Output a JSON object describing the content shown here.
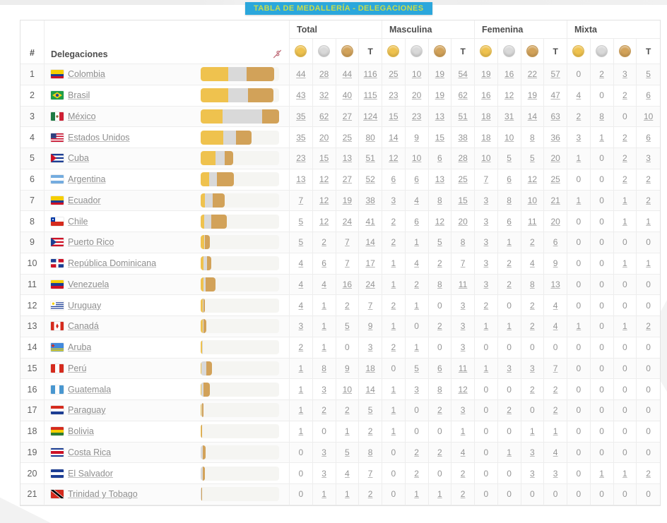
{
  "title": "TABLA DE MEDALLERÍA - DELEGACIONES",
  "colors": {
    "title_bg": "#2BA7DC",
    "title_text": "#C9DD4A",
    "gold": "#EFC24E",
    "silver": "#D9D9D9",
    "bronze": "#D2A259",
    "bar_track": "#F5F5F2",
    "header_icon_pink": "#C2717D"
  },
  "table": {
    "rank_header": "#",
    "delegations_header": "Delegaciones",
    "total_label": "T",
    "max_total": 124,
    "groups": [
      {
        "label": "Total",
        "key": "total"
      },
      {
        "label": "Masculina",
        "key": "masculina"
      },
      {
        "label": "Femenina",
        "key": "femenina"
      },
      {
        "label": "Mixta",
        "key": "mixta"
      }
    ],
    "medal_columns": [
      "gold",
      "silver",
      "bronze",
      "total"
    ],
    "rows": [
      {
        "rank": 1,
        "delegation": "Colombia",
        "flag": "colombia",
        "total": [
          44,
          28,
          44,
          116
        ],
        "masculina": [
          25,
          10,
          19,
          54
        ],
        "femenina": [
          19,
          16,
          22,
          57
        ],
        "mixta": [
          0,
          2,
          3,
          5
        ]
      },
      {
        "rank": 2,
        "delegation": "Brasil",
        "flag": "brasil",
        "total": [
          43,
          32,
          40,
          115
        ],
        "masculina": [
          23,
          20,
          19,
          62
        ],
        "femenina": [
          16,
          12,
          19,
          47
        ],
        "mixta": [
          4,
          0,
          2,
          6
        ]
      },
      {
        "rank": 3,
        "delegation": "México",
        "flag": "mexico",
        "total": [
          35,
          62,
          27,
          124
        ],
        "masculina": [
          15,
          23,
          13,
          51
        ],
        "femenina": [
          18,
          31,
          14,
          63
        ],
        "mixta": [
          2,
          8,
          0,
          10
        ]
      },
      {
        "rank": 4,
        "delegation": "Estados Unidos",
        "flag": "estados-unidos",
        "total": [
          35,
          20,
          25,
          80
        ],
        "masculina": [
          14,
          9,
          15,
          38
        ],
        "femenina": [
          18,
          10,
          8,
          36
        ],
        "mixta": [
          3,
          1,
          2,
          6
        ]
      },
      {
        "rank": 5,
        "delegation": "Cuba",
        "flag": "cuba",
        "total": [
          23,
          15,
          13,
          51
        ],
        "masculina": [
          12,
          10,
          6,
          28
        ],
        "femenina": [
          10,
          5,
          5,
          20
        ],
        "mixta": [
          1,
          0,
          2,
          3
        ]
      },
      {
        "rank": 6,
        "delegation": "Argentina",
        "flag": "argentina",
        "total": [
          13,
          12,
          27,
          52
        ],
        "masculina": [
          6,
          6,
          13,
          25
        ],
        "femenina": [
          7,
          6,
          12,
          25
        ],
        "mixta": [
          0,
          0,
          2,
          2
        ]
      },
      {
        "rank": 7,
        "delegation": "Ecuador",
        "flag": "ecuador",
        "total": [
          7,
          12,
          19,
          38
        ],
        "masculina": [
          3,
          4,
          8,
          15
        ],
        "femenina": [
          3,
          8,
          10,
          21
        ],
        "mixta": [
          1,
          0,
          1,
          2
        ]
      },
      {
        "rank": 8,
        "delegation": "Chile",
        "flag": "chile",
        "total": [
          5,
          12,
          24,
          41
        ],
        "masculina": [
          2,
          6,
          12,
          20
        ],
        "femenina": [
          3,
          6,
          11,
          20
        ],
        "mixta": [
          0,
          0,
          1,
          1
        ]
      },
      {
        "rank": 9,
        "delegation": "Puerto Rico",
        "flag": "puerto-rico",
        "total": [
          5,
          2,
          7,
          14
        ],
        "masculina": [
          2,
          1,
          5,
          8
        ],
        "femenina": [
          3,
          1,
          2,
          6
        ],
        "mixta": [
          0,
          0,
          0,
          0
        ]
      },
      {
        "rank": 10,
        "delegation": "República Dominicana",
        "flag": "republica-dominicana",
        "total": [
          4,
          6,
          7,
          17
        ],
        "masculina": [
          1,
          4,
          2,
          7
        ],
        "femenina": [
          3,
          2,
          4,
          9
        ],
        "mixta": [
          0,
          0,
          1,
          1
        ]
      },
      {
        "rank": 11,
        "delegation": "Venezuela",
        "flag": "venezuela",
        "total": [
          4,
          4,
          16,
          24
        ],
        "masculina": [
          1,
          2,
          8,
          11
        ],
        "femenina": [
          3,
          2,
          8,
          13
        ],
        "mixta": [
          0,
          0,
          0,
          0
        ]
      },
      {
        "rank": 12,
        "delegation": "Uruguay",
        "flag": "uruguay",
        "total": [
          4,
          1,
          2,
          7
        ],
        "masculina": [
          2,
          1,
          0,
          3
        ],
        "femenina": [
          2,
          0,
          2,
          4
        ],
        "mixta": [
          0,
          0,
          0,
          0
        ]
      },
      {
        "rank": 13,
        "delegation": "Canadá",
        "flag": "canada",
        "total": [
          3,
          1,
          5,
          9
        ],
        "masculina": [
          1,
          0,
          2,
          3
        ],
        "femenina": [
          1,
          1,
          2,
          4
        ],
        "mixta": [
          1,
          0,
          1,
          2
        ]
      },
      {
        "rank": 14,
        "delegation": "Aruba",
        "flag": "aruba",
        "total": [
          2,
          1,
          0,
          3
        ],
        "masculina": [
          2,
          1,
          0,
          3
        ],
        "femenina": [
          0,
          0,
          0,
          0
        ],
        "mixta": [
          0,
          0,
          0,
          0
        ]
      },
      {
        "rank": 15,
        "delegation": "Perú",
        "flag": "peru",
        "total": [
          1,
          8,
          9,
          18
        ],
        "masculina": [
          0,
          5,
          6,
          11
        ],
        "femenina": [
          1,
          3,
          3,
          7
        ],
        "mixta": [
          0,
          0,
          0,
          0
        ]
      },
      {
        "rank": 16,
        "delegation": "Guatemala",
        "flag": "guatemala",
        "total": [
          1,
          3,
          10,
          14
        ],
        "masculina": [
          1,
          3,
          8,
          12
        ],
        "femenina": [
          0,
          0,
          2,
          2
        ],
        "mixta": [
          0,
          0,
          0,
          0
        ]
      },
      {
        "rank": 17,
        "delegation": "Paraguay",
        "flag": "paraguay",
        "total": [
          1,
          2,
          2,
          5
        ],
        "masculina": [
          1,
          0,
          2,
          3
        ],
        "femenina": [
          0,
          2,
          0,
          2
        ],
        "mixta": [
          0,
          0,
          0,
          0
        ]
      },
      {
        "rank": 18,
        "delegation": "Bolivia",
        "flag": "bolivia",
        "total": [
          1,
          0,
          1,
          2
        ],
        "masculina": [
          1,
          0,
          0,
          1
        ],
        "femenina": [
          0,
          0,
          1,
          1
        ],
        "mixta": [
          0,
          0,
          0,
          0
        ]
      },
      {
        "rank": 19,
        "delegation": "Costa Rica",
        "flag": "costa-rica",
        "total": [
          0,
          3,
          5,
          8
        ],
        "masculina": [
          0,
          2,
          2,
          4
        ],
        "femenina": [
          0,
          1,
          3,
          4
        ],
        "mixta": [
          0,
          0,
          0,
          0
        ]
      },
      {
        "rank": 20,
        "delegation": "El Salvador",
        "flag": "el-salvador",
        "total": [
          0,
          3,
          4,
          7
        ],
        "masculina": [
          0,
          2,
          0,
          2
        ],
        "femenina": [
          0,
          0,
          3,
          3
        ],
        "mixta": [
          0,
          1,
          1,
          2
        ]
      },
      {
        "rank": 21,
        "delegation": "Trinidad y Tobago",
        "flag": "trinidad-y-tobago",
        "total": [
          0,
          1,
          1,
          2
        ],
        "masculina": [
          0,
          1,
          1,
          2
        ],
        "femenina": [
          0,
          0,
          0,
          0
        ],
        "mixta": [
          0,
          0,
          0,
          0
        ]
      }
    ]
  },
  "flags": {
    "colombia": {
      "type": "h",
      "stripes": [
        [
          "#F5CE00",
          2
        ],
        [
          "#1A3E94",
          1
        ],
        [
          "#CE1126",
          1
        ]
      ]
    },
    "brasil": {
      "type": "brasil",
      "bg": "#1E9E48",
      "diamond": "#F7D117",
      "circle": "#2A4597"
    },
    "mexico": {
      "type": "v",
      "stripes": [
        [
          "#1E7A44",
          1
        ],
        [
          "#FFFFFF",
          1
        ],
        [
          "#CE2034",
          1
        ]
      ],
      "emblem": "#8A6D3B"
    },
    "estados-unidos": {
      "type": "usa",
      "stripe1": "#C8102E",
      "canton": "#2E3F7F"
    },
    "cuba": {
      "type": "tri",
      "stripes": [
        [
          "#1C3E94",
          1
        ],
        [
          "#FFFFFF",
          1
        ],
        [
          "#1C3E94",
          1
        ],
        [
          "#FFFFFF",
          1
        ],
        [
          "#1C3E94",
          1
        ]
      ],
      "triangle": "#CE1126"
    },
    "argentina": {
      "type": "h",
      "stripes": [
        [
          "#74ACDF",
          1
        ],
        [
          "#FFFFFF",
          1
        ],
        [
          "#74ACDF",
          1
        ]
      ]
    },
    "ecuador": {
      "type": "h",
      "stripes": [
        [
          "#F5CE00",
          2
        ],
        [
          "#1A3E94",
          1
        ],
        [
          "#CE1126",
          1
        ]
      ]
    },
    "chile": {
      "type": "chile",
      "top": "#FFFFFF",
      "bottom": "#D52B1E",
      "canton": "#0039A6"
    },
    "puerto-rico": {
      "type": "tri",
      "stripes": [
        [
          "#CE1126",
          1
        ],
        [
          "#FFFFFF",
          1
        ],
        [
          "#CE1126",
          1
        ],
        [
          "#FFFFFF",
          1
        ],
        [
          "#CE1126",
          1
        ]
      ],
      "triangle": "#1C3E94"
    },
    "republica-dominicana": {
      "type": "cross",
      "tl": "#1C3E94",
      "tr": "#CE1126",
      "bl": "#CE1126",
      "br": "#1C3E94",
      "cross": "#FFFFFF"
    },
    "venezuela": {
      "type": "h",
      "stripes": [
        [
          "#F5CE00",
          1
        ],
        [
          "#1A3E94",
          1
        ],
        [
          "#CE1126",
          1
        ]
      ]
    },
    "uruguay": {
      "type": "uruguay",
      "s1": "#FFFFFF",
      "s2": "#1C3E94",
      "sun": "#F5CE00"
    },
    "canada": {
      "type": "canada",
      "side": "#D52B1E",
      "center": "#FFFFFF",
      "maple": "#D52B1E"
    },
    "aruba": {
      "type": "aruba",
      "bg": "#4189DD",
      "stripe": "#F5D900",
      "star": "#D52B1E"
    },
    "peru": {
      "type": "v",
      "stripes": [
        [
          "#D52B1E",
          1
        ],
        [
          "#FFFFFF",
          1
        ],
        [
          "#D52B1E",
          1
        ]
      ]
    },
    "guatemala": {
      "type": "v",
      "stripes": [
        [
          "#4997D0",
          1
        ],
        [
          "#FFFFFF",
          1
        ],
        [
          "#4997D0",
          1
        ]
      ]
    },
    "paraguay": {
      "type": "h",
      "stripes": [
        [
          "#D52B1E",
          1
        ],
        [
          "#FFFFFF",
          1
        ],
        [
          "#1C3E94",
          1
        ]
      ]
    },
    "bolivia": {
      "type": "h",
      "stripes": [
        [
          "#D52B1E",
          1
        ],
        [
          "#F5CE00",
          1
        ],
        [
          "#2E7D32",
          1
        ]
      ]
    },
    "costa-rica": {
      "type": "h",
      "stripes": [
        [
          "#1C3E94",
          1
        ],
        [
          "#FFFFFF",
          1
        ],
        [
          "#CE1126",
          2
        ],
        [
          "#FFFFFF",
          1
        ],
        [
          "#1C3E94",
          1
        ]
      ]
    },
    "el-salvador": {
      "type": "h",
      "stripes": [
        [
          "#1C3E94",
          1
        ],
        [
          "#FFFFFF",
          1
        ],
        [
          "#1C3E94",
          1
        ]
      ]
    },
    "trinidad-y-tobago": {
      "type": "trinidad",
      "bg": "#D52B1E",
      "band": "#000000",
      "edge": "#FFFFFF"
    }
  }
}
